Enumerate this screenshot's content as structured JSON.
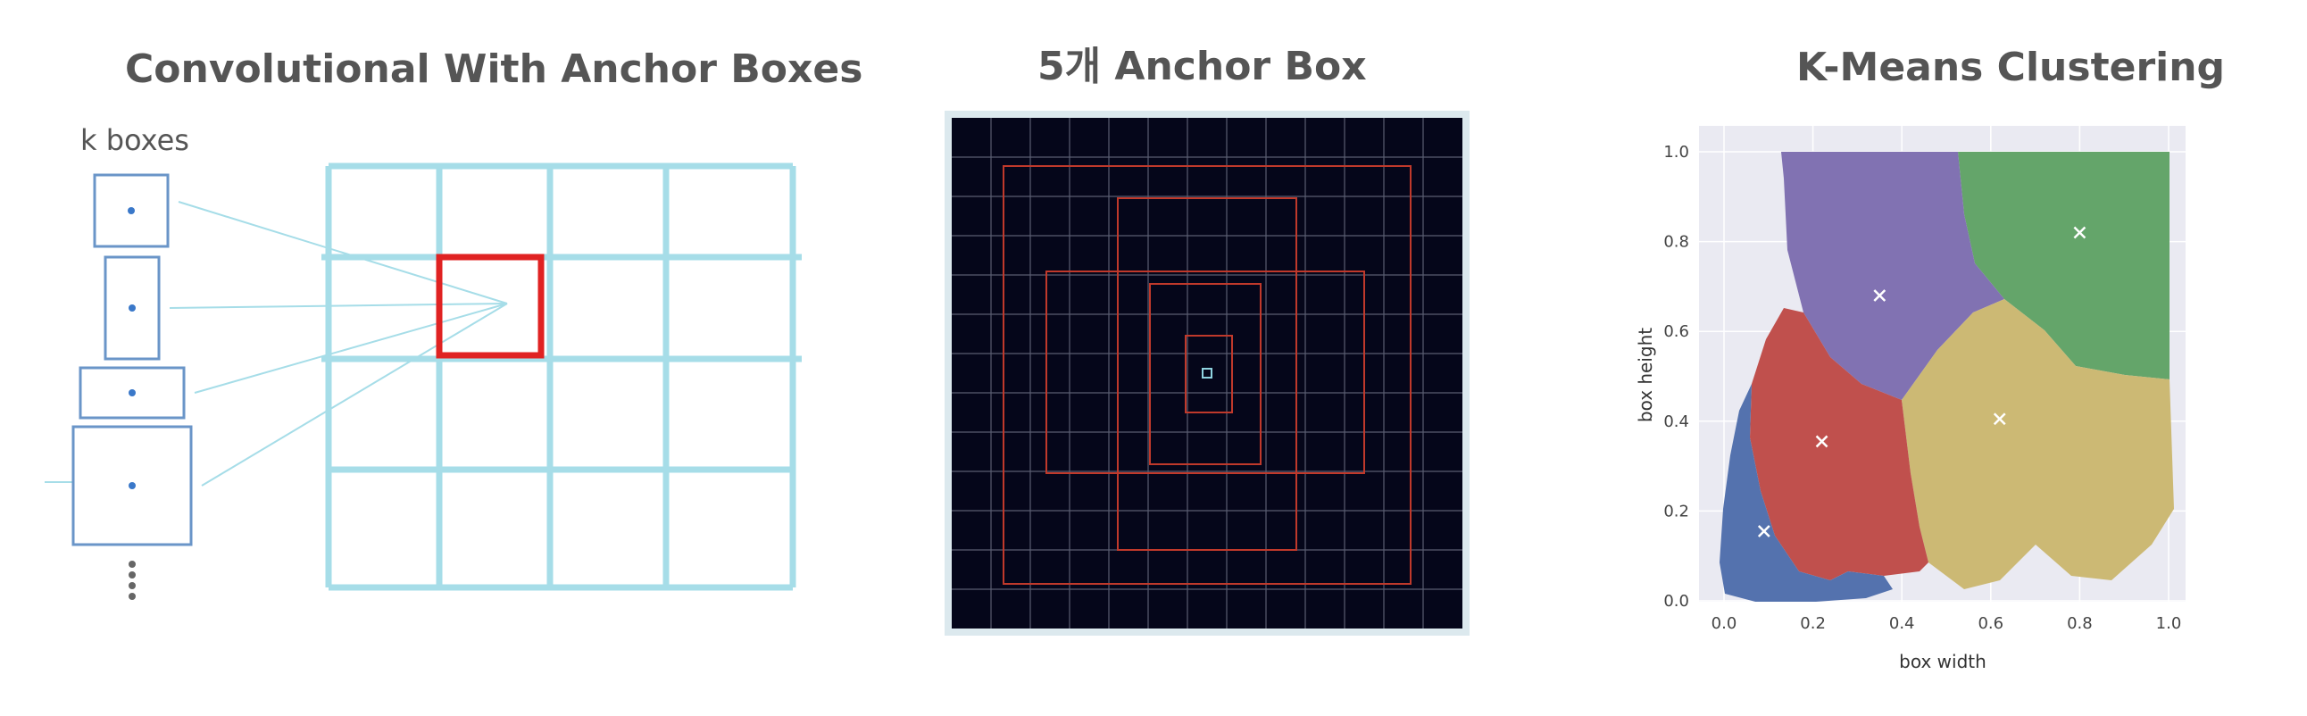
{
  "panels": {
    "conv": {
      "title": "Convolutional With Anchor Boxes",
      "boxes_label": "k boxes",
      "grid_color": "#a6dde8",
      "highlight_color": "#e02222",
      "box_color": "#6a95c8",
      "dot_color": "#3a78c9"
    },
    "anchor": {
      "title": "5개 Anchor Box",
      "background_color": "#05061a",
      "grid_line_color": "#5a5e72",
      "anchor_color": "#c0392b",
      "center_color": "#8fd3e0",
      "anchor_count": 5
    },
    "kmeans": {
      "title": "K-Means Clustering",
      "background_color": "#eaeaf2",
      "cluster_colors": [
        "#5472ae",
        "#c0504d",
        "#8172b2",
        "#ccb974",
        "#64a56a"
      ],
      "centroid_marker_color": "#ffffff"
    }
  },
  "chart_data": {
    "type": "scatter",
    "xlabel": "box width",
    "ylabel": "box height",
    "xlim": [
      0.0,
      1.0
    ],
    "ylim": [
      0.0,
      1.0
    ],
    "xticks": [
      "0.0",
      "0.2",
      "0.4",
      "0.6",
      "0.8",
      "1.0"
    ],
    "yticks": [
      "0.0",
      "0.2",
      "0.4",
      "0.6",
      "0.8",
      "1.0"
    ],
    "grid": true,
    "centroids": [
      {
        "x": 0.09,
        "y": 0.155
      },
      {
        "x": 0.22,
        "y": 0.355
      },
      {
        "x": 0.35,
        "y": 0.68
      },
      {
        "x": 0.62,
        "y": 0.405
      },
      {
        "x": 0.8,
        "y": 0.82
      }
    ]
  }
}
